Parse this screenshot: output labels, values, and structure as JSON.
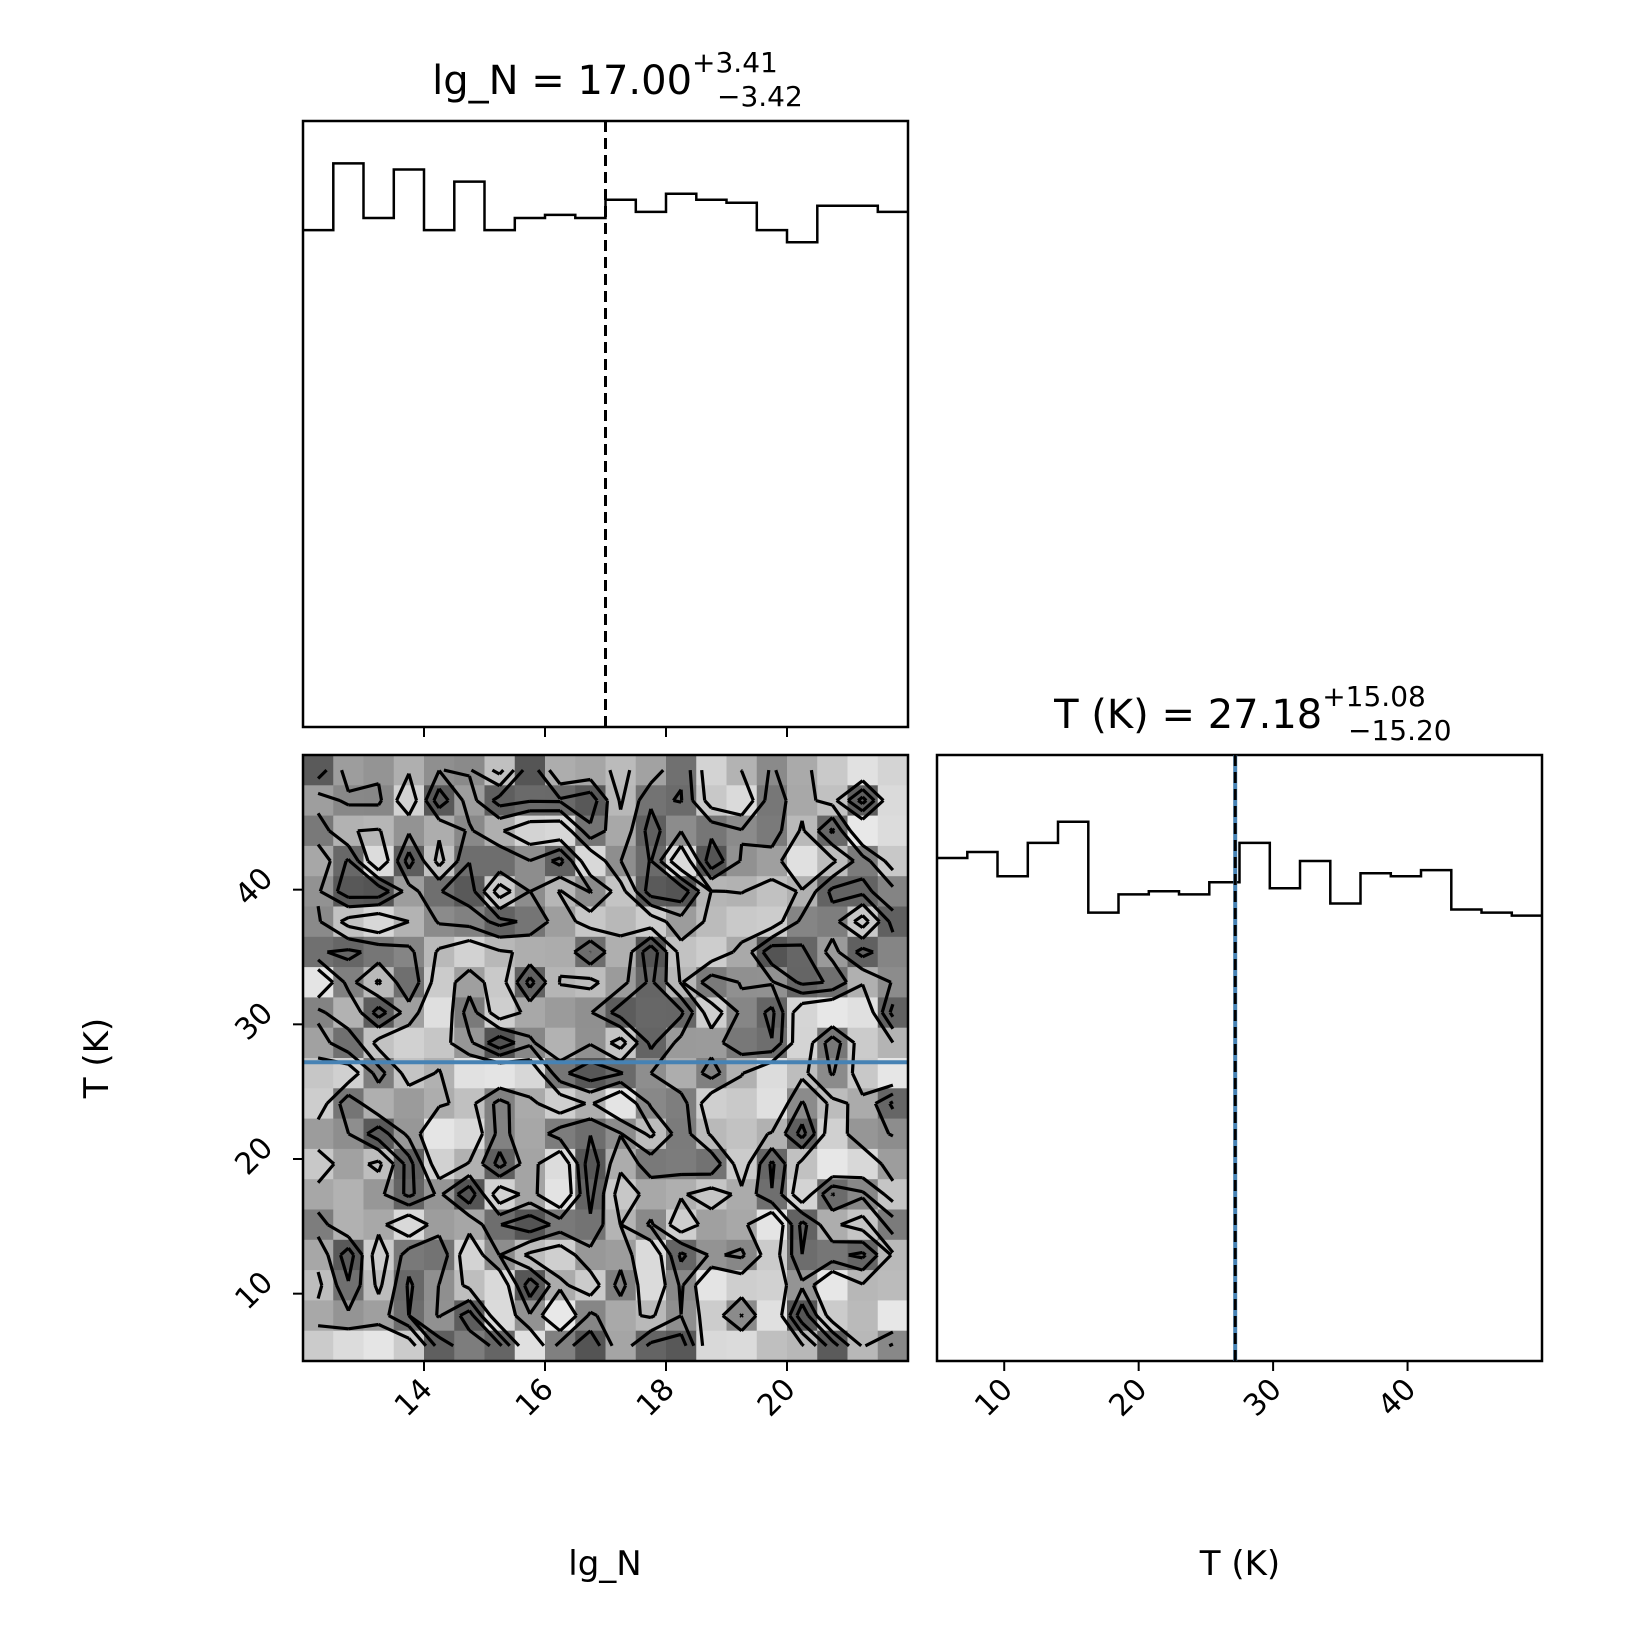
{
  "chart_data": [
    {
      "type": "histogram",
      "panel": "top-left",
      "title": "lg_N = 17.00",
      "title_parts": {
        "label": "lg_N = ",
        "median": "17.00",
        "plus": "+3.41",
        "minus": "−3.42"
      },
      "xlim": [
        12.0,
        22.0
      ],
      "ylim": [
        0,
        1.0
      ],
      "bin_edges": [
        12.0,
        12.5,
        13.0,
        13.5,
        14.0,
        14.5,
        15.0,
        15.5,
        16.0,
        16.5,
        17.0,
        17.5,
        18.0,
        18.5,
        19.0,
        19.5,
        20.0,
        20.5,
        21.0,
        21.5,
        22.0
      ],
      "counts": [
        0.82,
        0.93,
        0.84,
        0.92,
        0.82,
        0.9,
        0.82,
        0.84,
        0.845,
        0.84,
        0.87,
        0.85,
        0.88,
        0.87,
        0.865,
        0.82,
        0.8,
        0.86,
        0.86,
        0.85
      ],
      "median_line": {
        "x": 17.0,
        "style": "dashed",
        "color": "#000000"
      },
      "x_ticks": [
        14,
        16,
        18,
        20
      ],
      "show_tick_labels": false
    },
    {
      "type": "heatmap",
      "panel": "bottom-left",
      "xlabel": "lg_N",
      "ylabel": "T (K)",
      "xlim": [
        12.0,
        22.0
      ],
      "ylim": [
        5.0,
        50.0
      ],
      "x_ticks": [
        14,
        16,
        18,
        20
      ],
      "y_ticks": [
        10,
        20,
        30,
        40
      ],
      "grid": {
        "nx": 20,
        "ny": 20
      },
      "truth_line": {
        "y": 27.18,
        "color": "#4682b4"
      }
    },
    {
      "type": "histogram",
      "panel": "bottom-right",
      "title": "T (K) = 27.18",
      "title_parts": {
        "label": "T (K) = ",
        "median": "27.18",
        "plus": "+15.08",
        "minus": "−15.20"
      },
      "xlabel": "T (K)",
      "xlim": [
        5.0,
        50.0
      ],
      "ylim": [
        0,
        1.0
      ],
      "bin_edges": [
        5.0,
        7.25,
        9.5,
        11.75,
        14.0,
        16.25,
        18.5,
        20.75,
        23.0,
        25.25,
        27.5,
        29.75,
        32.0,
        34.25,
        36.5,
        38.75,
        41.0,
        43.25,
        45.5,
        47.75,
        50.0
      ],
      "counts": [
        0.83,
        0.84,
        0.8,
        0.855,
        0.89,
        0.74,
        0.77,
        0.775,
        0.77,
        0.79,
        0.855,
        0.78,
        0.825,
        0.755,
        0.805,
        0.8,
        0.81,
        0.745,
        0.74,
        0.735
      ],
      "median_line": {
        "x": 27.18,
        "style": "dashed",
        "color": "#000000"
      },
      "truth_line": {
        "x": 27.18,
        "color": "#4682b4"
      },
      "x_ticks": [
        10,
        20,
        30,
        40
      ]
    }
  ]
}
